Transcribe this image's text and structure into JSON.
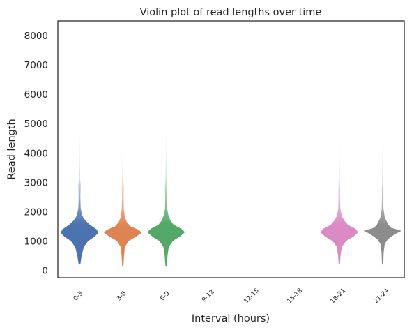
{
  "chart_data": {
    "type": "violin",
    "title": "Violin plot of read lengths over time",
    "xlabel": "Interval (hours)",
    "ylabel": "Read length",
    "ylim": [
      -250,
      8500
    ],
    "yticks": [
      0,
      1000,
      2000,
      3000,
      4000,
      5000,
      6000,
      7000,
      8000
    ],
    "grid": false,
    "legend": "none",
    "categories": [
      "0-3",
      "3-6",
      "6-9",
      "9-12",
      "12-15",
      "15-18",
      "18-21",
      "21-24"
    ],
    "series": [
      {
        "category": "0-3",
        "color": "#4c72b0",
        "has_data": true,
        "profile": [
          [
            200,
            0.03
          ],
          [
            500,
            0.1
          ],
          [
            800,
            0.22
          ],
          [
            1000,
            0.45
          ],
          [
            1150,
            0.8
          ],
          [
            1280,
            1.0
          ],
          [
            1400,
            0.9
          ],
          [
            1550,
            0.55
          ],
          [
            1700,
            0.3
          ],
          [
            1850,
            0.14
          ],
          [
            2100,
            0.05
          ],
          [
            2500,
            0.03
          ],
          [
            2900,
            0.05
          ],
          [
            3100,
            0.02
          ],
          [
            3600,
            0.01
          ],
          [
            4700,
            0.0
          ]
        ]
      },
      {
        "category": "3-6",
        "color": "#dd8452",
        "has_data": true,
        "profile": [
          [
            150,
            0.02
          ],
          [
            500,
            0.05
          ],
          [
            800,
            0.1
          ],
          [
            1000,
            0.3
          ],
          [
            1150,
            0.7
          ],
          [
            1280,
            1.0
          ],
          [
            1380,
            0.85
          ],
          [
            1500,
            0.4
          ],
          [
            1650,
            0.2
          ],
          [
            1800,
            0.1
          ],
          [
            2100,
            0.04
          ],
          [
            2500,
            0.03
          ],
          [
            2800,
            0.04
          ],
          [
            3100,
            0.02
          ],
          [
            3700,
            0.005
          ],
          [
            4600,
            0.0
          ]
        ]
      },
      {
        "category": "6-9",
        "color": "#55a868",
        "has_data": true,
        "profile": [
          [
            150,
            0.02
          ],
          [
            500,
            0.06
          ],
          [
            800,
            0.13
          ],
          [
            1000,
            0.35
          ],
          [
            1150,
            0.72
          ],
          [
            1300,
            1.0
          ],
          [
            1420,
            0.8
          ],
          [
            1550,
            0.4
          ],
          [
            1700,
            0.22
          ],
          [
            1850,
            0.12
          ],
          [
            2100,
            0.04
          ],
          [
            2500,
            0.03
          ],
          [
            2800,
            0.05
          ],
          [
            3100,
            0.02
          ],
          [
            3700,
            0.005
          ],
          [
            4800,
            0.0
          ]
        ]
      },
      {
        "category": "9-12",
        "color": "#c44e52",
        "has_data": false,
        "profile": []
      },
      {
        "category": "12-15",
        "color": "#8172b3",
        "has_data": false,
        "profile": []
      },
      {
        "category": "15-18",
        "color": "#937860",
        "has_data": false,
        "profile": []
      },
      {
        "category": "18-21",
        "color": "#da8bc3",
        "has_data": true,
        "profile": [
          [
            200,
            0.02
          ],
          [
            500,
            0.05
          ],
          [
            800,
            0.12
          ],
          [
            1000,
            0.35
          ],
          [
            1150,
            0.75
          ],
          [
            1300,
            1.0
          ],
          [
            1420,
            0.85
          ],
          [
            1550,
            0.45
          ],
          [
            1700,
            0.25
          ],
          [
            1850,
            0.12
          ],
          [
            2100,
            0.04
          ],
          [
            2500,
            0.03
          ],
          [
            2800,
            0.04
          ],
          [
            3100,
            0.02
          ],
          [
            3700,
            0.005
          ],
          [
            4600,
            0.0
          ]
        ]
      },
      {
        "category": "21-24",
        "color": "#8c8c8c",
        "has_data": true,
        "profile": [
          [
            200,
            0.02
          ],
          [
            600,
            0.04
          ],
          [
            900,
            0.1
          ],
          [
            1050,
            0.25
          ],
          [
            1150,
            0.45
          ],
          [
            1250,
            0.7
          ],
          [
            1350,
            1.0
          ],
          [
            1450,
            0.45
          ],
          [
            1550,
            0.3
          ],
          [
            1650,
            0.22
          ],
          [
            1800,
            0.1
          ],
          [
            2100,
            0.03
          ],
          [
            2500,
            0.02
          ],
          [
            2800,
            0.03
          ],
          [
            3100,
            0.015
          ],
          [
            3700,
            0.005
          ],
          [
            4600,
            0.0
          ]
        ]
      }
    ]
  }
}
